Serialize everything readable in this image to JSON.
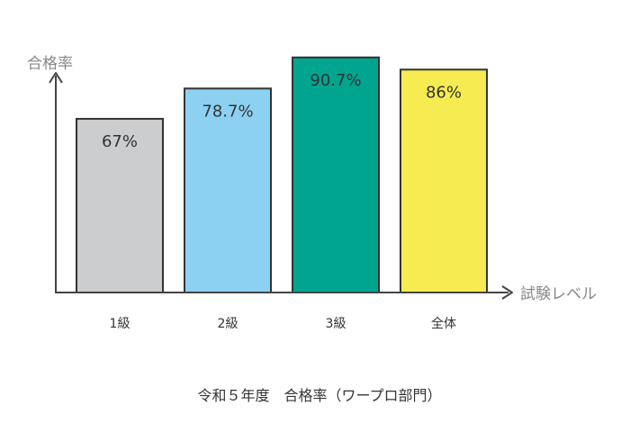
{
  "chart_data": {
    "type": "bar",
    "ylabel": "合格率",
    "xlabel": "試験レベル",
    "categories": [
      "1級",
      "2級",
      "3級",
      "全体"
    ],
    "values": [
      67,
      78.7,
      90.7,
      86
    ],
    "data_labels": [
      "67%",
      "78.7%",
      "90.7%",
      "86%"
    ],
    "ylim": [
      0,
      100
    ],
    "bar_colors": [
      "#cccdcf",
      "#8dd1f2",
      "#00a58f",
      "#f6ec52"
    ],
    "bar_outline_color": "#333333",
    "axis_color": "#444444",
    "axis_label_color": "#888888",
    "grid": false
  },
  "caption": "令和５年度　合格率（ワープロ部門）"
}
